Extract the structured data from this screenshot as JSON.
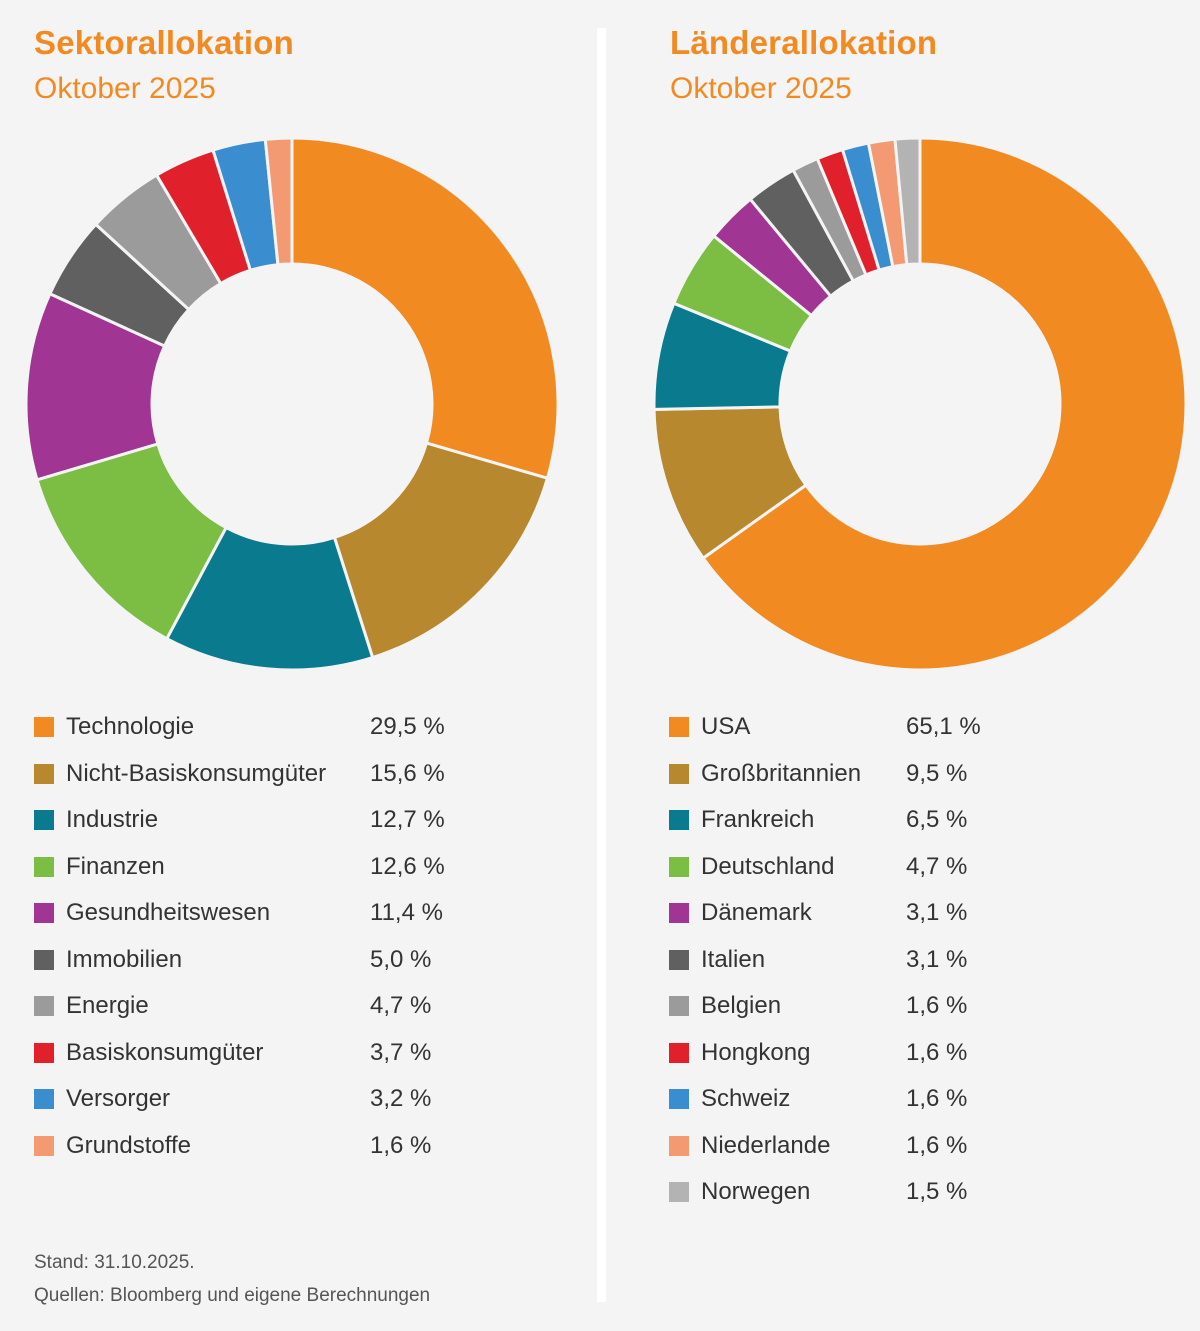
{
  "chart_data": [
    {
      "type": "pie",
      "variant": "donut",
      "title": "Sektorallokation",
      "subtitle": "Oktober 2025",
      "unit": "%",
      "slices": [
        {
          "label": "Technologie",
          "value": 29.5,
          "display": "29,5 %",
          "color": "#f28a22"
        },
        {
          "label": "Nicht-Basiskonsumgüter",
          "value": 15.6,
          "display": "15,6 %",
          "color": "#b8882e"
        },
        {
          "label": "Industrie",
          "value": 12.7,
          "display": "12,7 %",
          "color": "#0a7a8f"
        },
        {
          "label": "Finanzen",
          "value": 12.6,
          "display": "12,6 %",
          "color": "#7cbd44"
        },
        {
          "label": "Gesundheitswesen",
          "value": 11.4,
          "display": "11,4 %",
          "color": "#a03594"
        },
        {
          "label": "Immobilien",
          "value": 5.0,
          "display": "5,0 %",
          "color": "#606060"
        },
        {
          "label": "Energie",
          "value": 4.7,
          "display": "4,7 %",
          "color": "#9b9b9b"
        },
        {
          "label": "Basiskonsumgüter",
          "value": 3.7,
          "display": "3,7 %",
          "color": "#e0212b"
        },
        {
          "label": "Versorger",
          "value": 3.2,
          "display": "3,2 %",
          "color": "#3a8ed0"
        },
        {
          "label": "Grundstoffe",
          "value": 1.6,
          "display": "1,6 %",
          "color": "#f39a72"
        }
      ]
    },
    {
      "type": "pie",
      "variant": "donut",
      "title": "Länderallokation",
      "subtitle": "Oktober 2025",
      "unit": "%",
      "slices": [
        {
          "label": "USA",
          "value": 65.1,
          "display": "65,1 %",
          "color": "#f28a22"
        },
        {
          "label": "Großbritannien",
          "value": 9.5,
          "display": "9,5 %",
          "color": "#b8882e"
        },
        {
          "label": "Frankreich",
          "value": 6.5,
          "display": "6,5 %",
          "color": "#0a7a8f"
        },
        {
          "label": "Deutschland",
          "value": 4.7,
          "display": "4,7 %",
          "color": "#7cbd44"
        },
        {
          "label": "Dänemark",
          "value": 3.1,
          "display": "3,1 %",
          "color": "#a03594"
        },
        {
          "label": "Italien",
          "value": 3.1,
          "display": "3,1 %",
          "color": "#606060"
        },
        {
          "label": "Belgien",
          "value": 1.6,
          "display": "1,6 %",
          "color": "#9b9b9b"
        },
        {
          "label": "Hongkong",
          "value": 1.6,
          "display": "1,6 %",
          "color": "#e0212b"
        },
        {
          "label": "Schweiz",
          "value": 1.6,
          "display": "1,6 %",
          "color": "#3a8ed0"
        },
        {
          "label": "Niederlande",
          "value": 1.6,
          "display": "1,6 %",
          "color": "#f39a72"
        },
        {
          "label": "Norwegen",
          "value": 1.5,
          "display": "1,5 %",
          "color": "#b3b3b3"
        }
      ]
    }
  ],
  "footer": {
    "stand": "Stand: 31.10.2025.",
    "sources": "Quellen: Bloomberg und eigene Berechnungen"
  },
  "colors": {
    "accent": "#f28a22",
    "background": "#f4f4f4",
    "divider": "#ffffff"
  }
}
